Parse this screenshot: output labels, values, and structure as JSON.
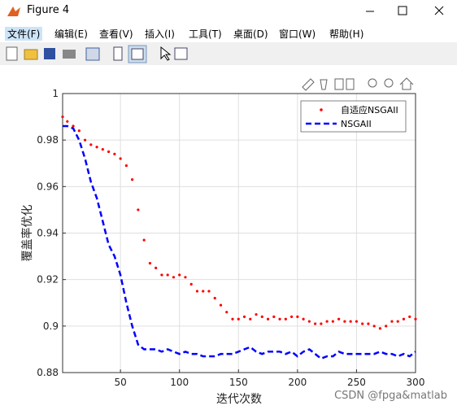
{
  "window": {
    "title": "Figure 4",
    "menu": [
      "文件(F)",
      "编辑(E)",
      "查看(V)",
      "插入(I)",
      "工具(T)",
      "桌面(D)",
      "窗口(W)",
      "帮助(H)"
    ]
  },
  "watermark": "CSDN @fpga&matlab",
  "chart_data": {
    "type": "line",
    "xlabel": "迭代次数",
    "ylabel": "覆盖率优化",
    "x": [
      1,
      5,
      10,
      15,
      20,
      25,
      30,
      35,
      40,
      45,
      50,
      55,
      60,
      65,
      70,
      75,
      80,
      85,
      90,
      95,
      100,
      105,
      110,
      115,
      120,
      125,
      130,
      135,
      140,
      145,
      150,
      155,
      160,
      165,
      170,
      175,
      180,
      185,
      190,
      195,
      200,
      205,
      210,
      215,
      220,
      225,
      230,
      235,
      240,
      245,
      250,
      255,
      260,
      265,
      270,
      275,
      280,
      285,
      290,
      295,
      300
    ],
    "series": [
      {
        "name": "自适应NSGAII",
        "color": "#ff0000",
        "style": "dots",
        "values": [
          0.99,
          0.988,
          0.986,
          0.984,
          0.98,
          0.978,
          0.977,
          0.976,
          0.975,
          0.974,
          0.972,
          0.969,
          0.963,
          0.95,
          0.937,
          0.927,
          0.925,
          0.922,
          0.922,
          0.921,
          0.922,
          0.921,
          0.918,
          0.915,
          0.915,
          0.915,
          0.912,
          0.909,
          0.906,
          0.903,
          0.903,
          0.904,
          0.903,
          0.905,
          0.904,
          0.903,
          0.904,
          0.903,
          0.903,
          0.904,
          0.904,
          0.903,
          0.902,
          0.901,
          0.901,
          0.902,
          0.902,
          0.903,
          0.902,
          0.902,
          0.902,
          0.901,
          0.901,
          0.9,
          0.899,
          0.9,
          0.902,
          0.902,
          0.903,
          0.904,
          0.903
        ]
      },
      {
        "name": "NSGAII",
        "color": "#0000ff",
        "style": "dashed",
        "values": [
          0.986,
          0.986,
          0.985,
          0.98,
          0.972,
          0.962,
          0.955,
          0.945,
          0.935,
          0.93,
          0.922,
          0.91,
          0.9,
          0.892,
          0.89,
          0.89,
          0.89,
          0.889,
          0.89,
          0.889,
          0.888,
          0.889,
          0.888,
          0.888,
          0.887,
          0.887,
          0.887,
          0.888,
          0.888,
          0.888,
          0.889,
          0.89,
          0.891,
          0.889,
          0.888,
          0.889,
          0.889,
          0.889,
          0.888,
          0.889,
          0.887,
          0.889,
          0.89,
          0.888,
          0.886,
          0.887,
          0.887,
          0.889,
          0.888,
          0.888,
          0.888,
          0.888,
          0.888,
          0.888,
          0.889,
          0.888,
          0.888,
          0.887,
          0.888,
          0.887,
          0.889
        ]
      }
    ],
    "xlim": [
      1,
      300
    ],
    "ylim": [
      0.88,
      1
    ],
    "xticks": [
      50,
      100,
      150,
      200,
      250,
      300
    ],
    "yticks": [
      0.88,
      0.9,
      0.92,
      0.94,
      0.96,
      0.98,
      1
    ],
    "grid": true,
    "legend": "upper right"
  }
}
